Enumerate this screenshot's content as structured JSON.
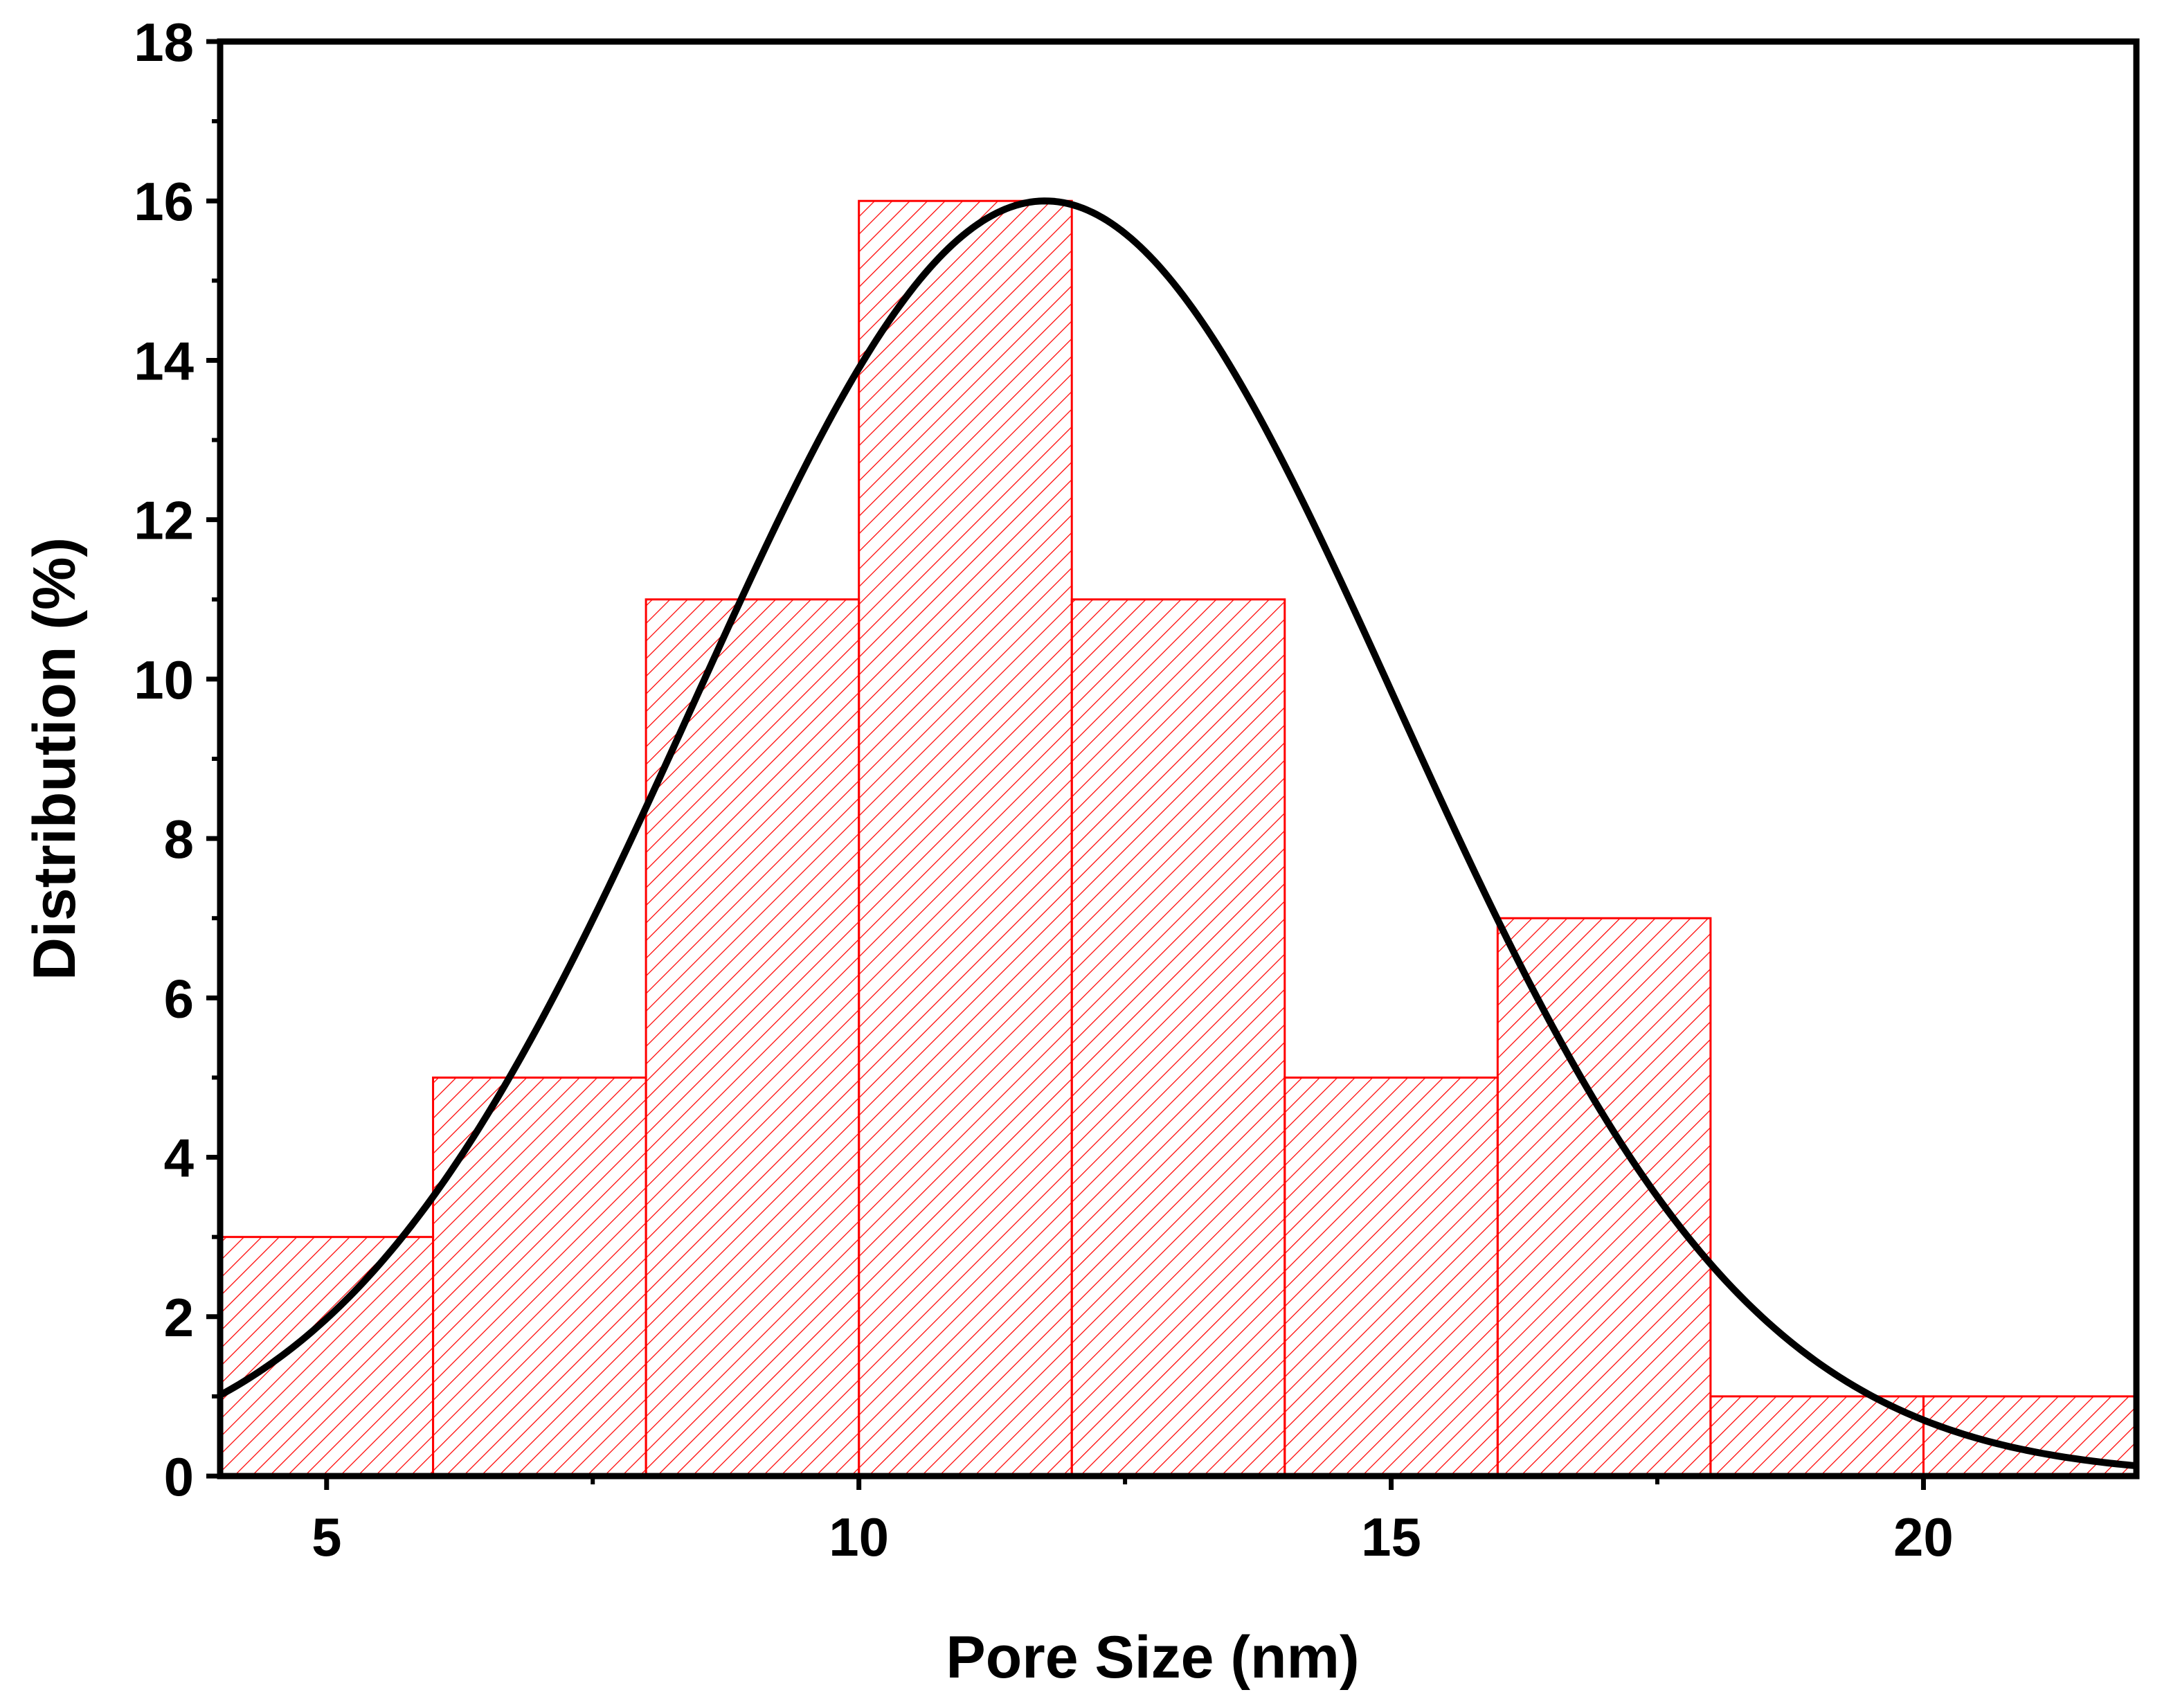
{
  "chart_data": {
    "type": "bar",
    "subtype": "histogram-with-fit",
    "title": "",
    "xlabel": "Pore Size (nm)",
    "ylabel": "Distribution (%)",
    "xlim": [
      4,
      22
    ],
    "ylim": [
      0,
      18
    ],
    "xticks": [
      5,
      10,
      15,
      20
    ],
    "xtick_labels": [
      "5",
      "10",
      "15",
      "20"
    ],
    "xminor": [
      7.5,
      12.5,
      17.5
    ],
    "yticks": [
      0,
      2,
      4,
      6,
      8,
      10,
      12,
      14,
      16,
      18
    ],
    "ytick_labels": [
      "0",
      "2",
      "4",
      "6",
      "8",
      "10",
      "12",
      "14",
      "16",
      "18"
    ],
    "yminor": [
      1,
      3,
      5,
      7,
      9,
      11,
      13,
      15,
      17
    ],
    "grid": false,
    "legend": "none",
    "bins": [
      {
        "x0": 4,
        "x1": 6,
        "value": 3
      },
      {
        "x0": 6,
        "x1": 8,
        "value": 5
      },
      {
        "x0": 8,
        "x1": 10,
        "value": 11
      },
      {
        "x0": 10,
        "x1": 12,
        "value": 16
      },
      {
        "x0": 12,
        "x1": 14,
        "value": 11
      },
      {
        "x0": 14,
        "x1": 16,
        "value": 5
      },
      {
        "x0": 16,
        "x1": 18,
        "value": 7
      },
      {
        "x0": 18,
        "x1": 20,
        "value": 1
      },
      {
        "x0": 20,
        "x1": 22,
        "value": 1
      }
    ],
    "fit": {
      "type": "gaussian",
      "amplitude": 16,
      "center": 11.75,
      "sigma": 3.3,
      "x_range": [
        4,
        22
      ]
    },
    "colors": {
      "bar_edge": "#ff0000",
      "hatch": "#ff0000",
      "fit_line": "#000000",
      "axis": "#000000"
    }
  }
}
